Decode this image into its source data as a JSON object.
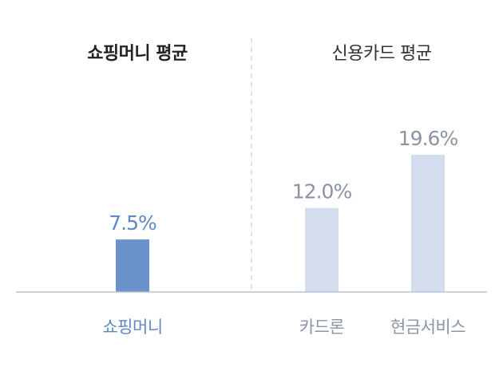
{
  "chart_data": {
    "type": "bar",
    "groups": [
      {
        "title": "쇼핑머니 평균",
        "categories": [
          "쇼핑머니"
        ]
      },
      {
        "title": "신용카드 평균",
        "categories": [
          "카드론",
          "현금서비스"
        ]
      }
    ],
    "categories": [
      "쇼핑머니",
      "카드론",
      "현금서비스"
    ],
    "values": [
      7.5,
      12.0,
      19.6
    ],
    "value_labels": [
      "7.5%",
      "12.0%",
      "19.6%"
    ],
    "unit": "%",
    "ylim": [
      0,
      25
    ],
    "grid": false,
    "colors": {
      "primary_bar": "#6a93cb",
      "primary_text": "#5e89c4",
      "secondary_bar": "#d4ddee",
      "secondary_text": "#8a94a4",
      "baseline": "#b7c3d6",
      "divider": "#d9d9d9"
    }
  }
}
